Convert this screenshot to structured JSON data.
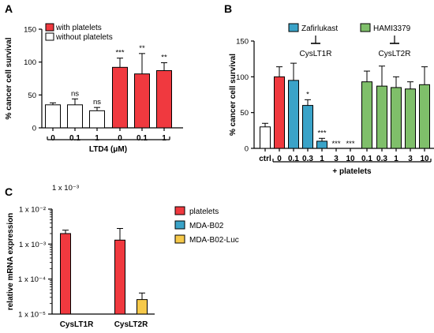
{
  "figure": {
    "colors": {
      "red": "#f0393f",
      "blue": "#3aa3c8",
      "green": "#7fbf6a",
      "yellow": "#f6c94a",
      "white": "#ffffff",
      "axis": "#000000"
    }
  },
  "chart_data": [
    {
      "panel": "A",
      "type": "bar",
      "ylabel": "% cancer cell survival",
      "xlabel": "LTD4 (μM)",
      "ylim": [
        0,
        150
      ],
      "yticks": [
        0,
        50,
        100,
        150
      ],
      "categories": [
        "0",
        "0.1",
        "1",
        "0",
        "0.1",
        "1"
      ],
      "series": [
        {
          "name": "without platelets",
          "color": "white",
          "values": [
            35,
            35,
            26,
            null,
            null,
            null
          ],
          "errors": [
            3,
            9,
            5,
            null,
            null,
            null
          ]
        },
        {
          "name": "with platelets",
          "color": "red",
          "values": [
            null,
            null,
            null,
            92,
            82,
            87
          ],
          "errors": [
            null,
            null,
            null,
            14,
            31,
            12
          ]
        }
      ],
      "significance": [
        "",
        "ns",
        "ns",
        "***",
        "**",
        "**"
      ],
      "legend": [
        "with platelets",
        "without platelets"
      ],
      "legend_position": "top-left"
    },
    {
      "panel": "B",
      "type": "bar",
      "ylabel": "% cancer cell survival",
      "ylim": [
        0,
        150
      ],
      "yticks": [
        0,
        50,
        100,
        150
      ],
      "categories": [
        "ctrl",
        "0",
        "0.1",
        "0.3",
        "1",
        "3",
        "10",
        "0.1",
        "0.3",
        "1",
        "3",
        "10"
      ],
      "values": [
        30,
        100,
        95,
        60,
        10,
        0,
        0,
        93,
        87,
        85,
        83,
        89
      ],
      "errors": [
        5,
        14,
        24,
        8,
        4,
        0,
        0,
        15,
        28,
        15,
        10,
        25
      ],
      "bar_colors": [
        "white",
        "red",
        "blue",
        "blue",
        "blue",
        "blue",
        "blue",
        "green",
        "green",
        "green",
        "green",
        "green"
      ],
      "significance": [
        "",
        "",
        "",
        "*",
        "***",
        "***",
        "***",
        "",
        "",
        "",
        "",
        ""
      ],
      "group_label": "+ platelets",
      "legend": [
        {
          "name": "Zafirlukast",
          "color": "blue",
          "target": "CysLT1R"
        },
        {
          "name": "HAMI3379",
          "color": "green",
          "target": "CysLT2R"
        }
      ],
      "legend_position": "top"
    },
    {
      "panel": "C",
      "type": "bar",
      "ylabel": "relative mRNA expression",
      "yscale": "log",
      "ylim": [
        1e-05,
        0.01
      ],
      "ytick_labels": [
        "1 x 10⁻⁵",
        "1 x 10⁻⁴",
        "1 x 10⁻³",
        "1 x 10⁻²"
      ],
      "note": "1 x 10⁻³",
      "categories": [
        "CysLT1R",
        "CysLT2R"
      ],
      "series": [
        {
          "name": "platelets",
          "color": "red",
          "values": [
            0.002,
            0.0013
          ],
          "errors": [
            0.0005,
            0.0015
          ]
        },
        {
          "name": "MDA-B02",
          "color": "blue",
          "values": [
            null,
            null
          ],
          "errors": [
            null,
            null
          ]
        },
        {
          "name": "MDA-B02-Luc",
          "color": "yellow",
          "values": [
            null,
            2.6e-05
          ],
          "errors": [
            null,
            1.4e-05
          ]
        }
      ],
      "legend_position": "right"
    }
  ]
}
